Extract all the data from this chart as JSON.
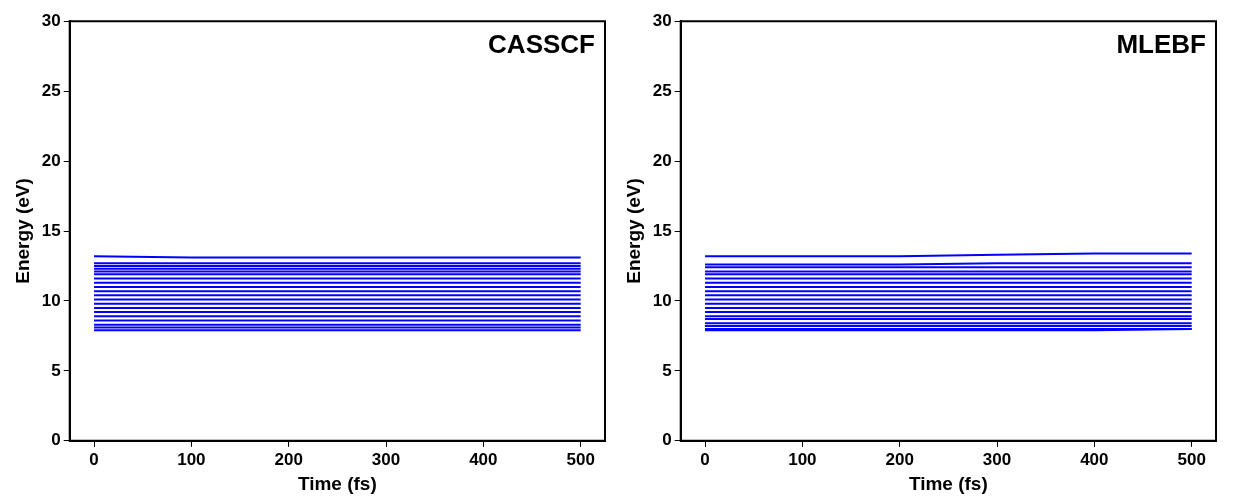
{
  "chart_data": [
    {
      "type": "line",
      "annotations": [
        "CASSCF"
      ],
      "xlabel": "Time (fs)",
      "ylabel": "Energy (eV)",
      "xlim": [
        -25,
        525
      ],
      "xticks": [
        0,
        100,
        200,
        300,
        400,
        500
      ],
      "ylim": [
        0,
        30
      ],
      "yticks": [
        0,
        5,
        10,
        15,
        20,
        25,
        30
      ],
      "grid": false,
      "legend": false,
      "marker": "none",
      "line_style": "solid",
      "x": [
        0,
        100,
        200,
        300,
        400,
        500
      ],
      "series": [
        {
          "color": "#0000ff",
          "values": [
            13.2,
            13.1,
            13.1,
            13.1,
            13.1,
            13.1
          ]
        },
        {
          "color": "#0000ff",
          "values": [
            12.7,
            12.7,
            12.7,
            12.7,
            12.7,
            12.7
          ]
        },
        {
          "color": "#0000ff",
          "values": [
            12.5,
            12.5,
            12.5,
            12.5,
            12.5,
            12.5
          ]
        },
        {
          "color": "#0000ff",
          "values": [
            12.3,
            12.3,
            12.3,
            12.3,
            12.3,
            12.3
          ]
        },
        {
          "color": "#0000ff",
          "values": [
            12.1,
            12.1,
            12.1,
            12.1,
            12.1,
            12.1
          ]
        },
        {
          "color": "#0000ff",
          "values": [
            11.9,
            11.9,
            11.9,
            11.9,
            11.9,
            11.9
          ]
        },
        {
          "color": "#0000ff",
          "values": [
            11.6,
            11.6,
            11.6,
            11.6,
            11.6,
            11.6
          ]
        },
        {
          "color": "#0000ff",
          "values": [
            11.3,
            11.3,
            11.3,
            11.3,
            11.3,
            11.3
          ]
        },
        {
          "color": "#0000ff",
          "values": [
            11.0,
            11.0,
            11.0,
            11.0,
            11.0,
            11.0
          ]
        },
        {
          "color": "#0000ff",
          "values": [
            10.7,
            10.7,
            10.7,
            10.7,
            10.7,
            10.7
          ]
        },
        {
          "color": "#0000ff",
          "values": [
            10.4,
            10.4,
            10.4,
            10.4,
            10.4,
            10.4
          ]
        },
        {
          "color": "#0000ff",
          "values": [
            10.1,
            10.1,
            10.1,
            10.1,
            10.1,
            10.1
          ]
        },
        {
          "color": "#0000ff",
          "values": [
            9.8,
            9.8,
            9.8,
            9.8,
            9.8,
            9.8
          ]
        },
        {
          "color": "#0000ff",
          "values": [
            9.5,
            9.5,
            9.5,
            9.5,
            9.5,
            9.5
          ]
        },
        {
          "color": "#0000ff",
          "values": [
            9.2,
            9.2,
            9.2,
            9.2,
            9.2,
            9.2
          ]
        },
        {
          "color": "#0000ff",
          "values": [
            8.9,
            8.9,
            8.9,
            8.9,
            8.9,
            8.9
          ]
        },
        {
          "color": "#0000ff",
          "values": [
            8.6,
            8.6,
            8.6,
            8.6,
            8.6,
            8.6
          ]
        },
        {
          "color": "#0000ff",
          "values": [
            8.3,
            8.3,
            8.3,
            8.3,
            8.3,
            8.3
          ]
        },
        {
          "color": "#0000ff",
          "values": [
            8.1,
            8.1,
            8.1,
            8.1,
            8.1,
            8.1
          ]
        },
        {
          "color": "#0000ff",
          "values": [
            7.9,
            7.9,
            7.9,
            7.9,
            7.9,
            7.9
          ]
        }
      ]
    },
    {
      "type": "line",
      "annotations": [
        "MLEBF"
      ],
      "xlabel": "Time (fs)",
      "ylabel": "Energy (eV)",
      "xlim": [
        -25,
        525
      ],
      "xticks": [
        0,
        100,
        200,
        300,
        400,
        500
      ],
      "ylim": [
        0,
        30
      ],
      "yticks": [
        0,
        5,
        10,
        15,
        20,
        25,
        30
      ],
      "grid": false,
      "legend": false,
      "marker": "none",
      "line_style": "solid",
      "x": [
        0,
        100,
        200,
        300,
        400,
        500
      ],
      "series": [
        {
          "color": "#0000ff",
          "values": [
            13.2,
            13.2,
            13.2,
            13.3,
            13.4,
            13.4
          ]
        },
        {
          "color": "#0000ff",
          "values": [
            12.6,
            12.6,
            12.6,
            12.7,
            12.7,
            12.7
          ]
        },
        {
          "color": "#0000ff",
          "values": [
            12.4,
            12.4,
            12.4,
            12.4,
            12.4,
            12.4
          ]
        },
        {
          "color": "#0000ff",
          "values": [
            12.1,
            12.1,
            12.1,
            12.1,
            12.1,
            12.1
          ]
        },
        {
          "color": "#0000ff",
          "values": [
            11.9,
            11.9,
            11.9,
            11.9,
            11.9,
            11.9
          ]
        },
        {
          "color": "#0000ff",
          "values": [
            11.6,
            11.6,
            11.6,
            11.6,
            11.6,
            11.6
          ]
        },
        {
          "color": "#0000ff",
          "values": [
            11.3,
            11.3,
            11.3,
            11.3,
            11.3,
            11.3
          ]
        },
        {
          "color": "#0000ff",
          "values": [
            11.0,
            11.0,
            11.0,
            11.0,
            11.0,
            11.0
          ]
        },
        {
          "color": "#0000ff",
          "values": [
            10.7,
            10.7,
            10.7,
            10.7,
            10.7,
            10.7
          ]
        },
        {
          "color": "#0000ff",
          "values": [
            10.4,
            10.4,
            10.4,
            10.4,
            10.4,
            10.4
          ]
        },
        {
          "color": "#0000ff",
          "values": [
            10.1,
            10.1,
            10.1,
            10.1,
            10.1,
            10.1
          ]
        },
        {
          "color": "#0000ff",
          "values": [
            9.8,
            9.8,
            9.8,
            9.8,
            9.8,
            9.8
          ]
        },
        {
          "color": "#0000ff",
          "values": [
            9.5,
            9.5,
            9.5,
            9.5,
            9.5,
            9.5
          ]
        },
        {
          "color": "#0000ff",
          "values": [
            9.2,
            9.2,
            9.2,
            9.2,
            9.2,
            9.2
          ]
        },
        {
          "color": "#0000ff",
          "values": [
            8.9,
            8.9,
            8.9,
            8.9,
            8.9,
            8.9
          ]
        },
        {
          "color": "#0000ff",
          "values": [
            8.7,
            8.7,
            8.7,
            8.7,
            8.7,
            8.7
          ]
        },
        {
          "color": "#0000ff",
          "values": [
            8.4,
            8.4,
            8.4,
            8.4,
            8.4,
            8.4
          ]
        },
        {
          "color": "#0000ff",
          "values": [
            8.2,
            8.2,
            8.2,
            8.2,
            8.2,
            8.2
          ]
        },
        {
          "color": "#0000ff",
          "values": [
            8.0,
            8.0,
            8.0,
            8.0,
            8.0,
            8.0
          ]
        },
        {
          "color": "#0000ff",
          "values": [
            7.9,
            7.9,
            7.9,
            7.9,
            7.9,
            8.0
          ]
        }
      ]
    }
  ]
}
